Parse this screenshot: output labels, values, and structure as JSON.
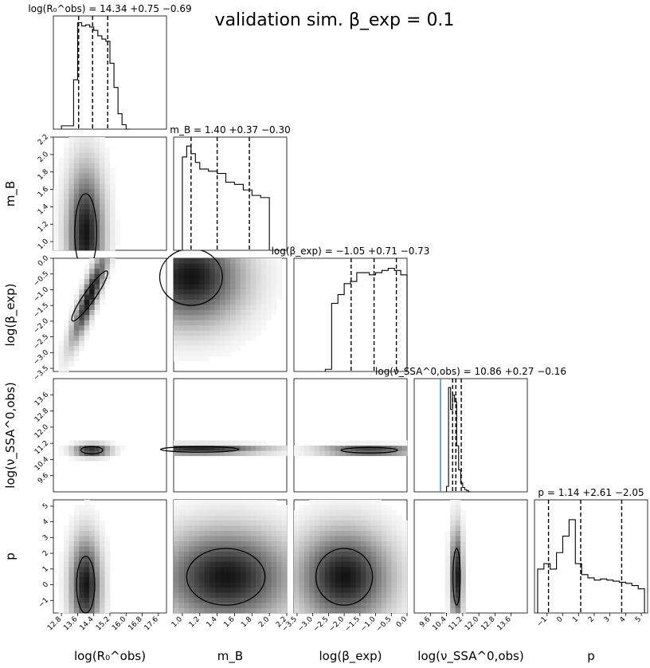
{
  "figure": {
    "suptitle": "validation sim. β_exp = 0.1"
  },
  "chart_data": {
    "type": "corner",
    "parameters": [
      {
        "key": "logR0",
        "axis_label": "log(R₀^obs)",
        "title": "log(R₀^obs) = 14.34 +0.75 −0.69",
        "median": 14.34,
        "err_plus": 0.75,
        "err_minus": 0.69,
        "range": [
          12.4,
          18.0
        ],
        "ticks": [
          "12.8",
          "13.6",
          "14.4",
          "15.2",
          "16.0",
          "16.8",
          "17.6"
        ]
      },
      {
        "key": "mB",
        "axis_label": "m_B",
        "title": "m_B = 1.40 +0.37 −0.30",
        "median": 1.4,
        "err_plus": 0.37,
        "err_minus": 0.3,
        "range": [
          0.9,
          2.2
        ],
        "ticks": [
          "1.0",
          "1.2",
          "1.4",
          "1.6",
          "1.8",
          "2.0",
          "2.2"
        ]
      },
      {
        "key": "logbeta",
        "axis_label": "log(β_exp)",
        "title": "log(β_exp) = −1.05 +0.71 −0.73",
        "median": -1.05,
        "err_plus": 0.71,
        "err_minus": 0.73,
        "range": [
          -3.6,
          0.0
        ],
        "ticks": [
          "−3.5",
          "−3.0",
          "−2.5",
          "−2.0",
          "−1.5",
          "−1.0",
          "−0.5",
          "0.0"
        ]
      },
      {
        "key": "lognu",
        "axis_label": "log(ν_SSA^0,obs)",
        "title": "log(ν_SSA^0,obs) = 10.86 +0.27 −0.16",
        "median": 10.86,
        "err_plus": 0.27,
        "err_minus": 0.16,
        "range": [
          8.8,
          14.4
        ],
        "ticks": [
          "9.6",
          "10.4",
          "11.2",
          "12.0",
          "12.8",
          "13.6"
        ]
      },
      {
        "key": "p",
        "axis_label": "p",
        "title": "p = 1.14 +2.61 −2.05",
        "median": 1.14,
        "err_plus": 2.61,
        "err_minus": 2.05,
        "range": [
          -1.8,
          5.4
        ],
        "ticks": [
          "−1",
          "0",
          "1",
          "2",
          "3",
          "4",
          "5"
        ]
      }
    ],
    "truth_line": {
      "parameter": "lognu",
      "value": 10.1,
      "color": "#4a86c5"
    },
    "marginal_histograms": [
      {
        "edges": [
          12.8,
          13.1,
          13.4,
          13.6,
          13.8,
          14.0,
          14.2,
          14.4,
          14.6,
          14.8,
          15.0,
          15.2,
          15.4,
          15.6,
          15.8,
          16.0,
          16.2
        ],
        "counts": [
          0.03,
          0.03,
          0.45,
          0.97,
          0.94,
          0.95,
          0.93,
          0.9,
          0.85,
          0.82,
          0.8,
          0.6,
          0.38,
          0.14,
          0.04,
          0.0
        ]
      },
      {
        "edges": [
          1.0,
          1.05,
          1.1,
          1.15,
          1.2,
          1.3,
          1.4,
          1.5,
          1.6,
          1.7,
          1.8,
          1.9,
          2.0
        ],
        "counts": [
          0.85,
          0.95,
          0.88,
          0.8,
          0.74,
          0.72,
          0.7,
          0.62,
          0.6,
          0.55,
          0.5,
          0.48
        ]
      },
      {
        "edges": [
          -2.6,
          -2.4,
          -2.2,
          -2.0,
          -1.8,
          -1.6,
          -1.4,
          -1.2,
          -1.0,
          -0.8,
          -0.6,
          -0.4,
          -0.2,
          0.0
        ],
        "counts": [
          0.02,
          0.62,
          0.7,
          0.8,
          0.82,
          0.9,
          0.9,
          0.88,
          0.9,
          0.92,
          0.94,
          0.92,
          0.88
        ]
      },
      {
        "edges": [
          10.4,
          10.5,
          10.6,
          10.7,
          10.8,
          10.9,
          11.0,
          11.1,
          11.2,
          11.3,
          11.4,
          11.5,
          11.6
        ],
        "counts": [
          0.05,
          0.95,
          0.75,
          0.88,
          0.82,
          0.42,
          0.2,
          0.08,
          0.04,
          0.02,
          0.01,
          0.0
        ]
      },
      {
        "edges": [
          -1.6,
          -1.2,
          -0.8,
          -0.4,
          0.0,
          0.4,
          0.8,
          1.2,
          1.6,
          2.0,
          2.4,
          2.8,
          3.2,
          3.6,
          4.0,
          4.4,
          4.8,
          5.2
        ],
        "counts": [
          0.4,
          0.45,
          0.4,
          0.55,
          0.7,
          0.85,
          0.45,
          0.35,
          0.32,
          0.3,
          0.31,
          0.3,
          0.29,
          0.28,
          0.27,
          0.25,
          0.22
        ]
      }
    ],
    "density_2d": [
      {
        "x": "logR0",
        "y": "mB",
        "peak": [
          14.0,
          1.1
        ],
        "spread": [
          0.6,
          0.5
        ],
        "tilt": 0.0
      },
      {
        "x": "logR0",
        "y": "logbeta",
        "peak": [
          14.2,
          -1.2
        ],
        "spread": [
          0.5,
          0.8
        ],
        "tilt": 0.95
      },
      {
        "x": "mB",
        "y": "logbeta",
        "peak": [
          1.1,
          -0.6
        ],
        "spread": [
          0.4,
          1.0
        ],
        "tilt": -0.3
      },
      {
        "x": "logR0",
        "y": "lognu",
        "peak": [
          14.3,
          10.86
        ],
        "spread": [
          0.6,
          0.2
        ],
        "tilt": 0.0
      },
      {
        "x": "mB",
        "y": "lognu",
        "peak": [
          1.2,
          10.9
        ],
        "spread": [
          0.5,
          0.15
        ],
        "tilt": -0.5
      },
      {
        "x": "logbeta",
        "y": "lognu",
        "peak": [
          -1.2,
          10.86
        ],
        "spread": [
          1.0,
          0.15
        ],
        "tilt": 0.0
      },
      {
        "x": "logR0",
        "y": "p",
        "peak": [
          14.0,
          0.0
        ],
        "spread": [
          0.5,
          2.0
        ],
        "tilt": 0.0
      },
      {
        "x": "mB",
        "y": "p",
        "peak": [
          1.5,
          0.5
        ],
        "spread": [
          0.5,
          2.0
        ],
        "tilt": 0.0
      },
      {
        "x": "logbeta",
        "y": "p",
        "peak": [
          -2.0,
          0.5
        ],
        "spread": [
          1.0,
          2.0
        ],
        "tilt": 0.0
      },
      {
        "x": "lognu",
        "y": "p",
        "peak": [
          10.9,
          0.5
        ],
        "spread": [
          0.2,
          2.0
        ],
        "tilt": 0.0
      }
    ]
  }
}
